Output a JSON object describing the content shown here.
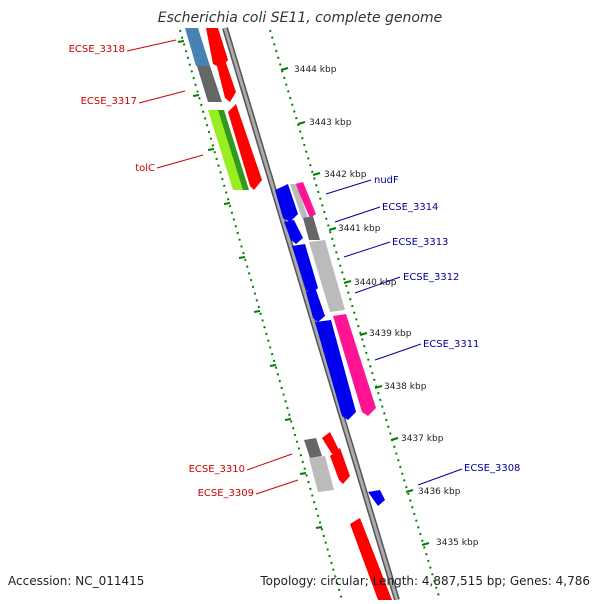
{
  "title": "Escherichia coli SE11, complete genome",
  "accession": "Accession: NC_011415",
  "topology": "Topology: circular; Length: 4,887,515 bp; Genes: 4,786",
  "kbp_labels": [
    "3444 kbp",
    "3443 kbp",
    "3442 kbp",
    "3441 kbp",
    "3440 kbp",
    "3439 kbp",
    "3438 kbp",
    "3437 kbp",
    "3436 kbp",
    "3435 kbp"
  ],
  "left_genes": [
    "ECSE_3318",
    "ECSE_3317",
    "tolC",
    "ECSE_3310",
    "ECSE_3309"
  ],
  "right_genes": [
    "nudF",
    "ECSE_3314",
    "ECSE_3313",
    "ECSE_3312",
    "ECSE_3311",
    "ECSE_3308"
  ],
  "colors": {
    "red_label": "#cc0000",
    "blue_label": "#000099",
    "gene_red": "#ff0000",
    "gene_blue": "#0000ee",
    "gene_pink": "#ff1493",
    "gene_green": "#99ee22",
    "gene_gray": "#bbbbbb",
    "gene_dark": "#666666",
    "gene_steel": "#4682b4",
    "tick_green": "#008000",
    "backbone": "#888888"
  }
}
